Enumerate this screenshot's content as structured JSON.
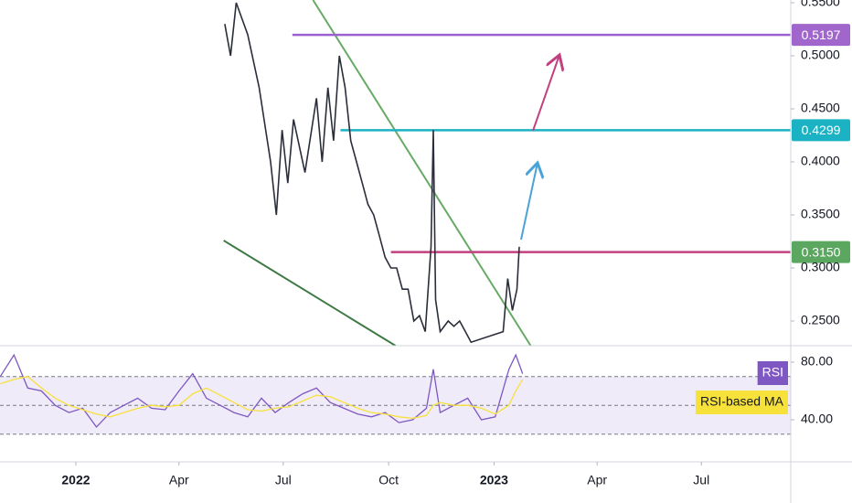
{
  "chart_data": [
    {
      "type": "line",
      "xlim": [
        -66.2,
        624
      ],
      "ylim": [
        0.2267,
        0.5526
      ],
      "yticks": [
        {
          "value": 0.55,
          "label": "0.5500"
        },
        {
          "value": 0.5,
          "label": "0.5000"
        },
        {
          "value": 0.45,
          "label": "0.4500"
        },
        {
          "value": 0.4,
          "label": "0.4000"
        },
        {
          "value": 0.35,
          "label": "0.3500"
        },
        {
          "value": 0.3,
          "label": "0.3000"
        },
        {
          "value": 0.25,
          "label": "0.2500"
        }
      ],
      "series": [
        {
          "color": "#2a2e39",
          "x": [
            130,
            135,
            140,
            150,
            160,
            170,
            175,
            180,
            185,
            190,
            200,
            210,
            215,
            220,
            225,
            230,
            235,
            240,
            245,
            250,
            255,
            260,
            265,
            270,
            275,
            280,
            285,
            290,
            295,
            300,
            305,
            310,
            312,
            314,
            318,
            325,
            330,
            335,
            340,
            345,
            373,
            377,
            381,
            385,
            387
          ],
          "values": [
            0.53,
            0.5,
            0.55,
            0.52,
            0.47,
            0.4,
            0.35,
            0.43,
            0.38,
            0.44,
            0.39,
            0.46,
            0.4,
            0.47,
            0.42,
            0.5,
            0.47,
            0.42,
            0.4,
            0.38,
            0.36,
            0.35,
            0.33,
            0.31,
            0.3,
            0.3,
            0.28,
            0.28,
            0.25,
            0.255,
            0.24,
            0.32,
            0.43,
            0.27,
            0.24,
            0.25,
            0.245,
            0.25,
            0.24,
            0.23,
            0.24,
            0.29,
            0.26,
            0.28,
            0.32
          ]
        }
      ],
      "levels": [
        {
          "value": 0.5197,
          "x_start": 189,
          "color": "#9c5fcf",
          "label_color": "#a066cc"
        },
        {
          "value": 0.4299,
          "x_start": 231,
          "color": "#1bb3c3",
          "label_color": "#1bb3c3"
        },
        {
          "value": {
            "value": 0.315,
            "label": "0.3150"
          },
          "x_start": 275,
          "color": "#c2407f",
          "label_color": "#5ca760"
        }
      ],
      "trendlines": [
        {
          "x": [
            207,
            397
          ],
          "values": [
            0.5526,
            0.2267
          ],
          "color": "#66aa66"
        },
        {
          "x": [
            129,
            279
          ],
          "values": [
            0.3259,
            0.2267
          ],
          "color": "#3f7a45"
        }
      ]
    },
    {
      "type": "line",
      "xlim": [
        -66.2,
        624
      ],
      "ylim": [
        10.8,
        91.4
      ],
      "xticks": [
        {
          "value": 0,
          "label": "2022"
        },
        {
          "value": 90,
          "label": "Apr"
        },
        {
          "value": 181,
          "label": "Jul"
        },
        {
          "value": 273,
          "label": "Oct"
        },
        {
          "value": 365,
          "label": "2023"
        },
        {
          "value": 455,
          "label": "Apr"
        },
        {
          "value": 546,
          "label": "Jul"
        }
      ],
      "yticks": [
        {
          "value": 80,
          "label": "80.00"
        },
        {
          "value": 40,
          "label": "40.00"
        }
      ],
      "band": [
        30,
        70
      ],
      "hlines": [
        70,
        50,
        30
      ],
      "series": [
        {
          "name": "RSI",
          "color": "#7e57c2",
          "text_color": "#ffffff",
          "x": [
            -66,
            -54,
            -42,
            -30,
            -18,
            -6,
            6,
            18,
            30,
            42,
            54,
            66,
            78,
            90,
            102,
            114,
            126,
            138,
            150,
            162,
            174,
            186,
            198,
            210,
            222,
            234,
            246,
            258,
            270,
            282,
            294,
            306,
            312,
            318,
            330,
            342,
            354,
            366,
            378,
            384,
            390
          ],
          "values": [
            70,
            85,
            62,
            60,
            50,
            45,
            48,
            35,
            45,
            50,
            55,
            48,
            47,
            60,
            72,
            55,
            50,
            45,
            42,
            55,
            45,
            52,
            58,
            62,
            52,
            48,
            44,
            42,
            45,
            38,
            40,
            48,
            75,
            45,
            50,
            55,
            40,
            42,
            75,
            85,
            72
          ]
        },
        {
          "name": "RSI-based MA",
          "color": "#f7e13b",
          "text_color": "#131722",
          "x": [
            -66,
            -54,
            -42,
            -30,
            -18,
            -6,
            6,
            18,
            30,
            42,
            54,
            66,
            78,
            90,
            102,
            114,
            126,
            138,
            150,
            162,
            174,
            186,
            198,
            210,
            222,
            234,
            246,
            258,
            270,
            282,
            294,
            306,
            312,
            318,
            330,
            342,
            354,
            366,
            378,
            384,
            390
          ],
          "values": [
            65,
            68,
            70,
            62,
            55,
            50,
            47,
            44,
            42,
            45,
            48,
            50,
            49,
            50,
            58,
            62,
            57,
            52,
            47,
            46,
            48,
            49,
            53,
            57,
            56,
            52,
            48,
            45,
            44,
            42,
            41,
            43,
            50,
            52,
            50,
            50,
            48,
            44,
            50,
            60,
            68
          ]
        }
      ]
    }
  ]
}
